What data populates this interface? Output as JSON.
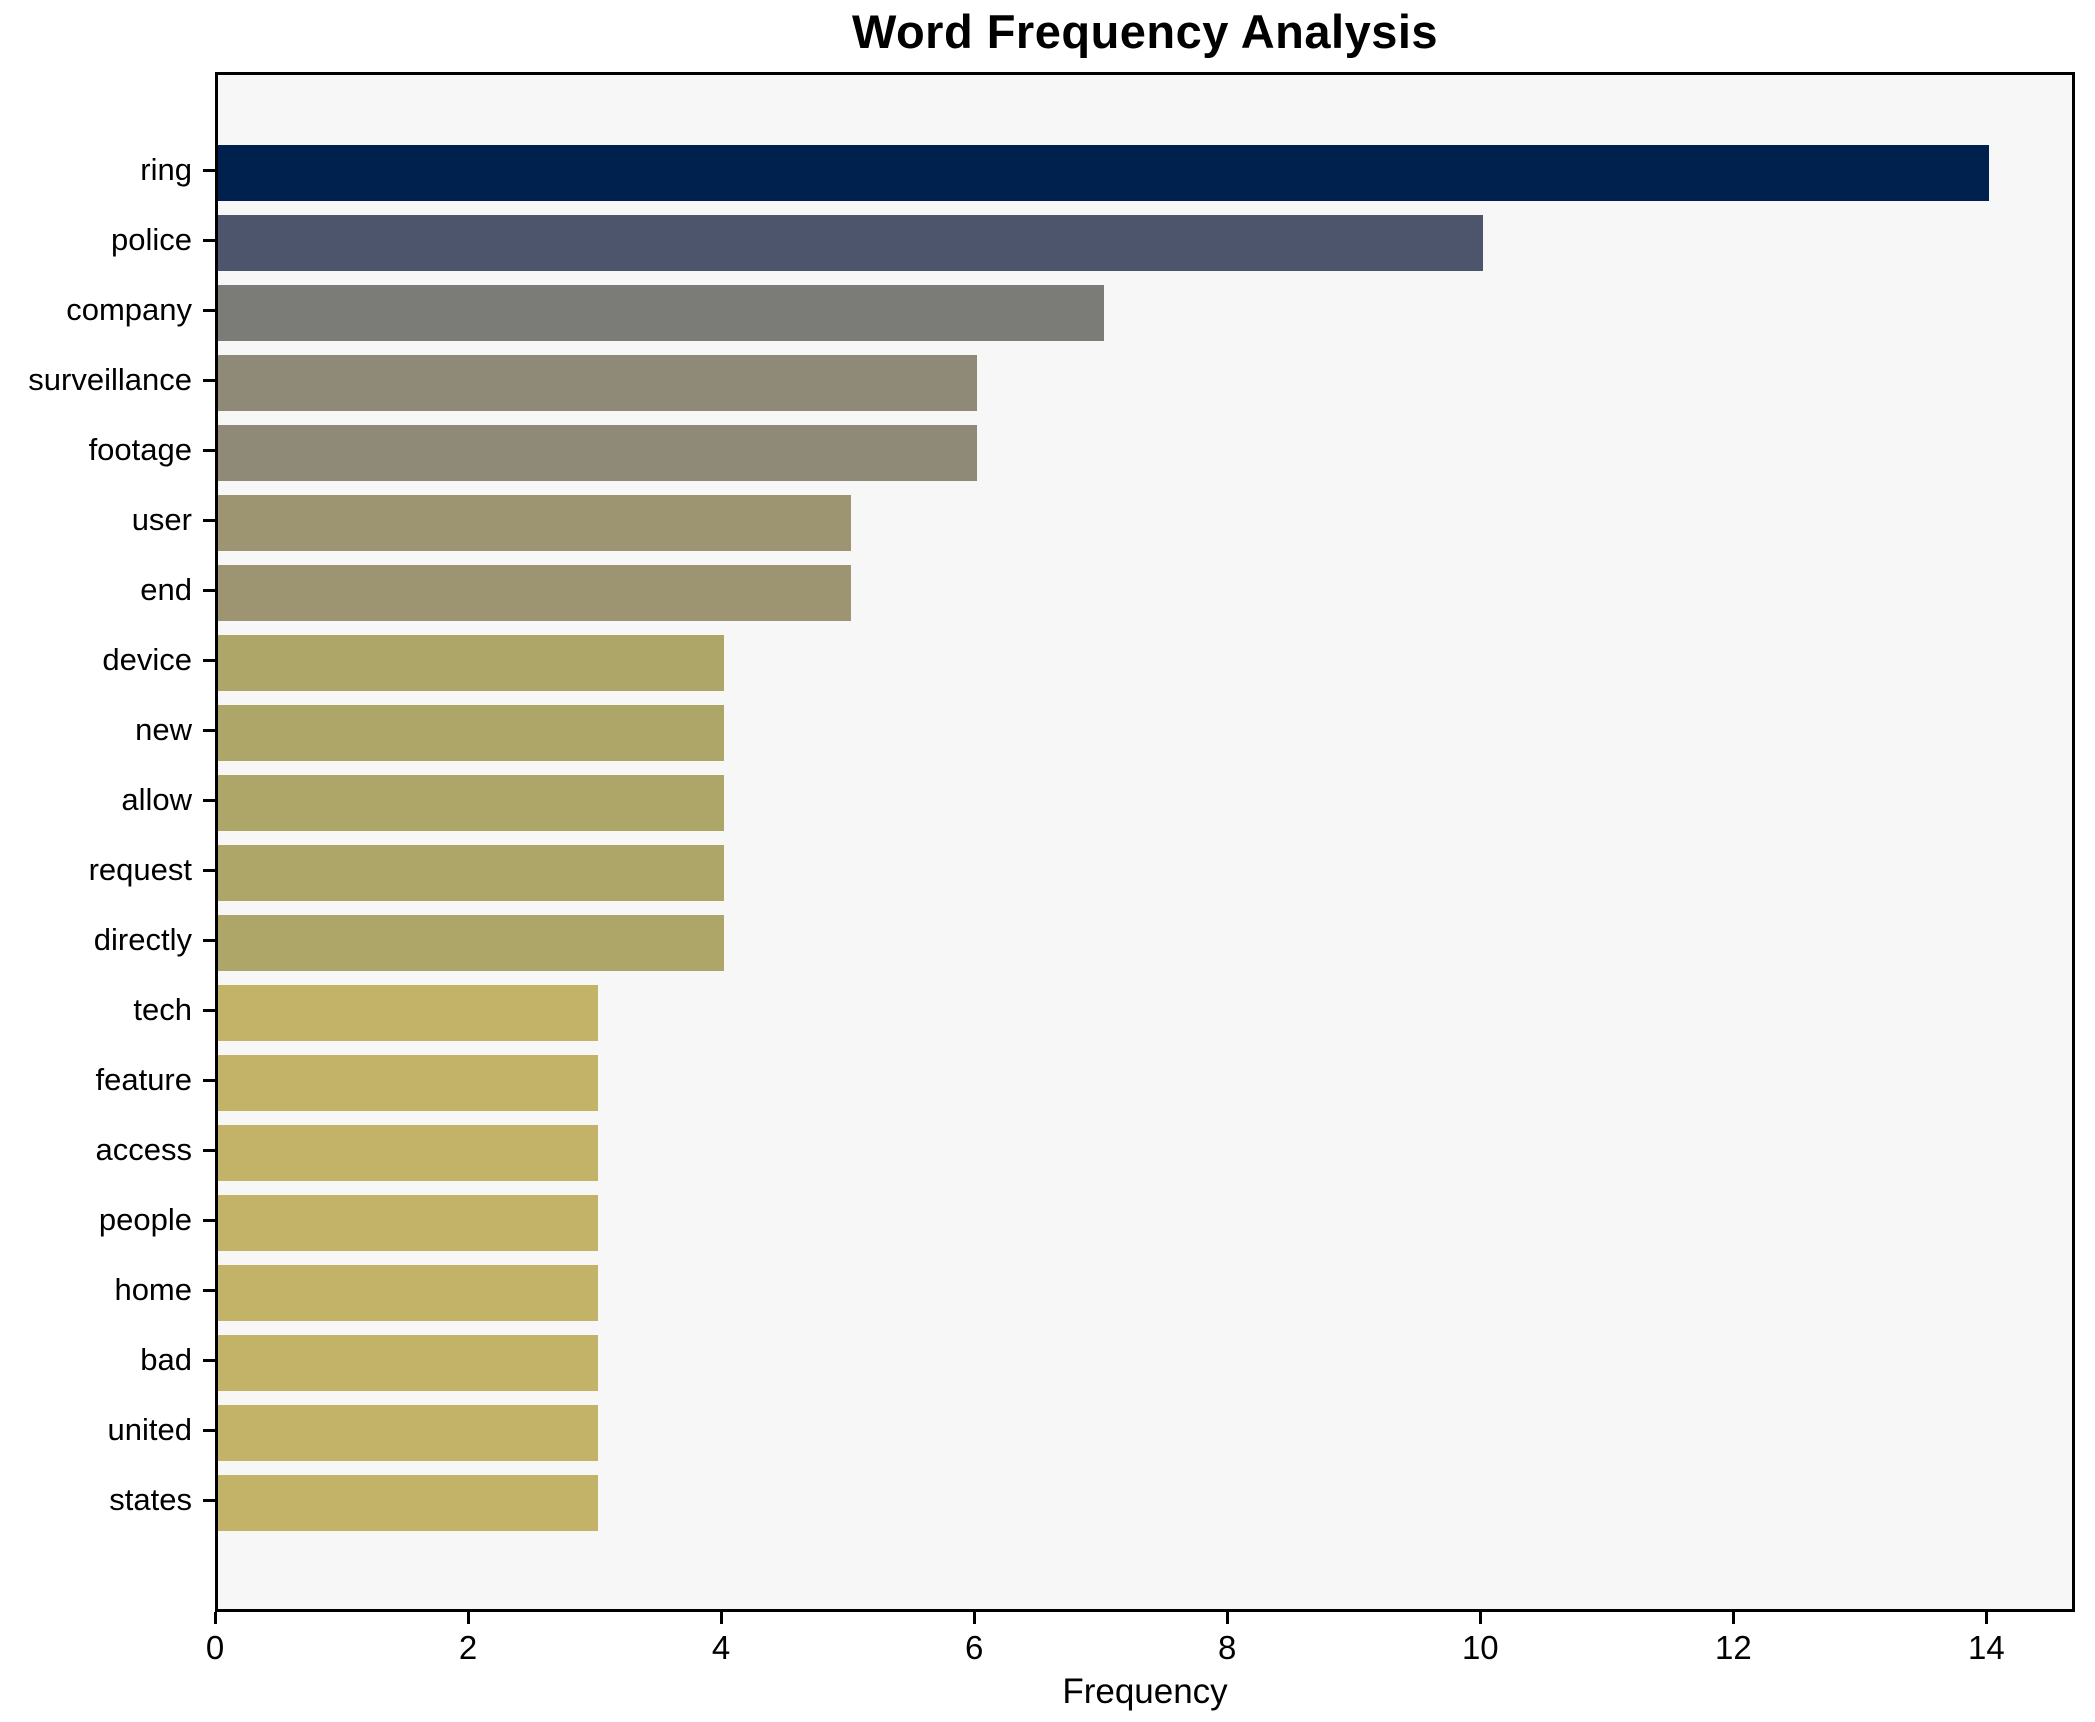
{
  "chart_data": {
    "type": "bar",
    "orientation": "horizontal",
    "title": "Word Frequency Analysis",
    "xlabel": "Frequency",
    "ylabel": "",
    "xlim": [
      0,
      14.7
    ],
    "xticks": [
      0,
      2,
      4,
      6,
      8,
      10,
      12,
      14
    ],
    "grid": false,
    "legend": null,
    "categories": [
      "ring",
      "police",
      "company",
      "surveillance",
      "footage",
      "user",
      "end",
      "device",
      "new",
      "allow",
      "request",
      "directly",
      "tech",
      "feature",
      "access",
      "people",
      "home",
      "bad",
      "united",
      "states"
    ],
    "values": [
      14,
      10,
      7,
      6,
      6,
      5,
      5,
      4,
      4,
      4,
      4,
      4,
      3,
      3,
      3,
      3,
      3,
      3,
      3,
      3
    ],
    "bar_colors": [
      "#00214d",
      "#4c556c",
      "#7b7b78",
      "#8f8977",
      "#8f8977",
      "#9d9572",
      "#9d9572",
      "#aea668",
      "#aea668",
      "#aea668",
      "#aea668",
      "#aea668",
      "#c3b368",
      "#c3b368",
      "#c3b368",
      "#c3b368",
      "#c3b368",
      "#c3b368",
      "#c3b368",
      "#c3b368"
    ],
    "colors": {
      "plot_background": "#f7f7f8",
      "figure_background": "#ffffff",
      "axis": "#000000",
      "text": "#000000"
    }
  }
}
